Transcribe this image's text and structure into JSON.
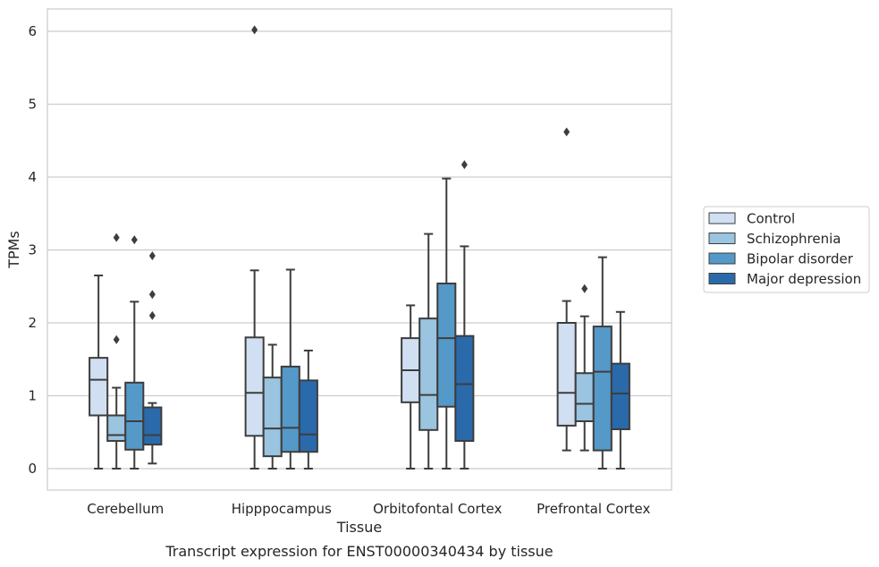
{
  "caption": "Transcript expression for ENST00000340434 by tissue",
  "chart_data": {
    "type": "box",
    "xlabel": "Tissue",
    "ylabel": "TPMs",
    "ylim": [
      -0.3,
      6.3
    ],
    "yticks": [
      0,
      1,
      2,
      3,
      4,
      5,
      6
    ],
    "grid": true,
    "legend_position": "right",
    "categories": [
      "Cerebellum",
      "Hipppocampus",
      "Orbitofontal Cortex",
      "Prefrontal Cortex"
    ],
    "series": [
      {
        "name": "Control",
        "color": "#d0e0f2",
        "boxes": [
          {
            "whislo": 0.0,
            "q1": 0.73,
            "med": 1.22,
            "q3": 1.52,
            "whishi": 2.65,
            "fliers": []
          },
          {
            "whislo": 0.0,
            "q1": 0.45,
            "med": 1.04,
            "q3": 1.8,
            "whishi": 2.72,
            "fliers": [
              6.02
            ]
          },
          {
            "whislo": 0.0,
            "q1": 0.91,
            "med": 1.35,
            "q3": 1.79,
            "whishi": 2.24,
            "fliers": []
          },
          {
            "whislo": 0.25,
            "q1": 0.59,
            "med": 1.04,
            "q3": 2.0,
            "whishi": 2.3,
            "fliers": [
              4.62
            ]
          }
        ]
      },
      {
        "name": "Schizophrenia",
        "color": "#9ac4df",
        "boxes": [
          {
            "whislo": 0.0,
            "q1": 0.38,
            "med": 0.46,
            "q3": 0.73,
            "whishi": 1.11,
            "fliers": [
              1.77,
              3.17
            ]
          },
          {
            "whislo": 0.0,
            "q1": 0.17,
            "med": 0.55,
            "q3": 1.25,
            "whishi": 1.7,
            "fliers": []
          },
          {
            "whislo": 0.0,
            "q1": 0.53,
            "med": 1.01,
            "q3": 2.06,
            "whishi": 3.22,
            "fliers": []
          },
          {
            "whislo": 0.25,
            "q1": 0.65,
            "med": 0.89,
            "q3": 1.31,
            "whishi": 2.09,
            "fliers": [
              2.47
            ]
          }
        ]
      },
      {
        "name": "Bipolar disorder",
        "color": "#5599c8",
        "boxes": [
          {
            "whislo": 0.0,
            "q1": 0.26,
            "med": 0.65,
            "q3": 1.18,
            "whishi": 2.29,
            "fliers": [
              3.14
            ]
          },
          {
            "whislo": 0.0,
            "q1": 0.23,
            "med": 0.56,
            "q3": 1.4,
            "whishi": 2.73,
            "fliers": []
          },
          {
            "whislo": 0.0,
            "q1": 0.85,
            "med": 1.79,
            "q3": 2.54,
            "whishi": 3.98,
            "fliers": []
          },
          {
            "whislo": 0.0,
            "q1": 0.25,
            "med": 1.33,
            "q3": 1.95,
            "whishi": 2.9,
            "fliers": []
          }
        ]
      },
      {
        "name": "Major depression",
        "color": "#2a6aab",
        "boxes": [
          {
            "whislo": 0.07,
            "q1": 0.33,
            "med": 0.46,
            "q3": 0.84,
            "whishi": 0.9,
            "fliers": [
              2.1,
              2.39,
              2.92
            ]
          },
          {
            "whislo": 0.0,
            "q1": 0.23,
            "med": 0.47,
            "q3": 1.21,
            "whishi": 1.62,
            "fliers": []
          },
          {
            "whislo": 0.0,
            "q1": 0.38,
            "med": 1.16,
            "q3": 1.82,
            "whishi": 3.05,
            "fliers": [
              4.17
            ]
          },
          {
            "whislo": 0.0,
            "q1": 0.54,
            "med": 1.03,
            "q3": 1.44,
            "whishi": 2.15,
            "fliers": []
          }
        ]
      }
    ]
  }
}
